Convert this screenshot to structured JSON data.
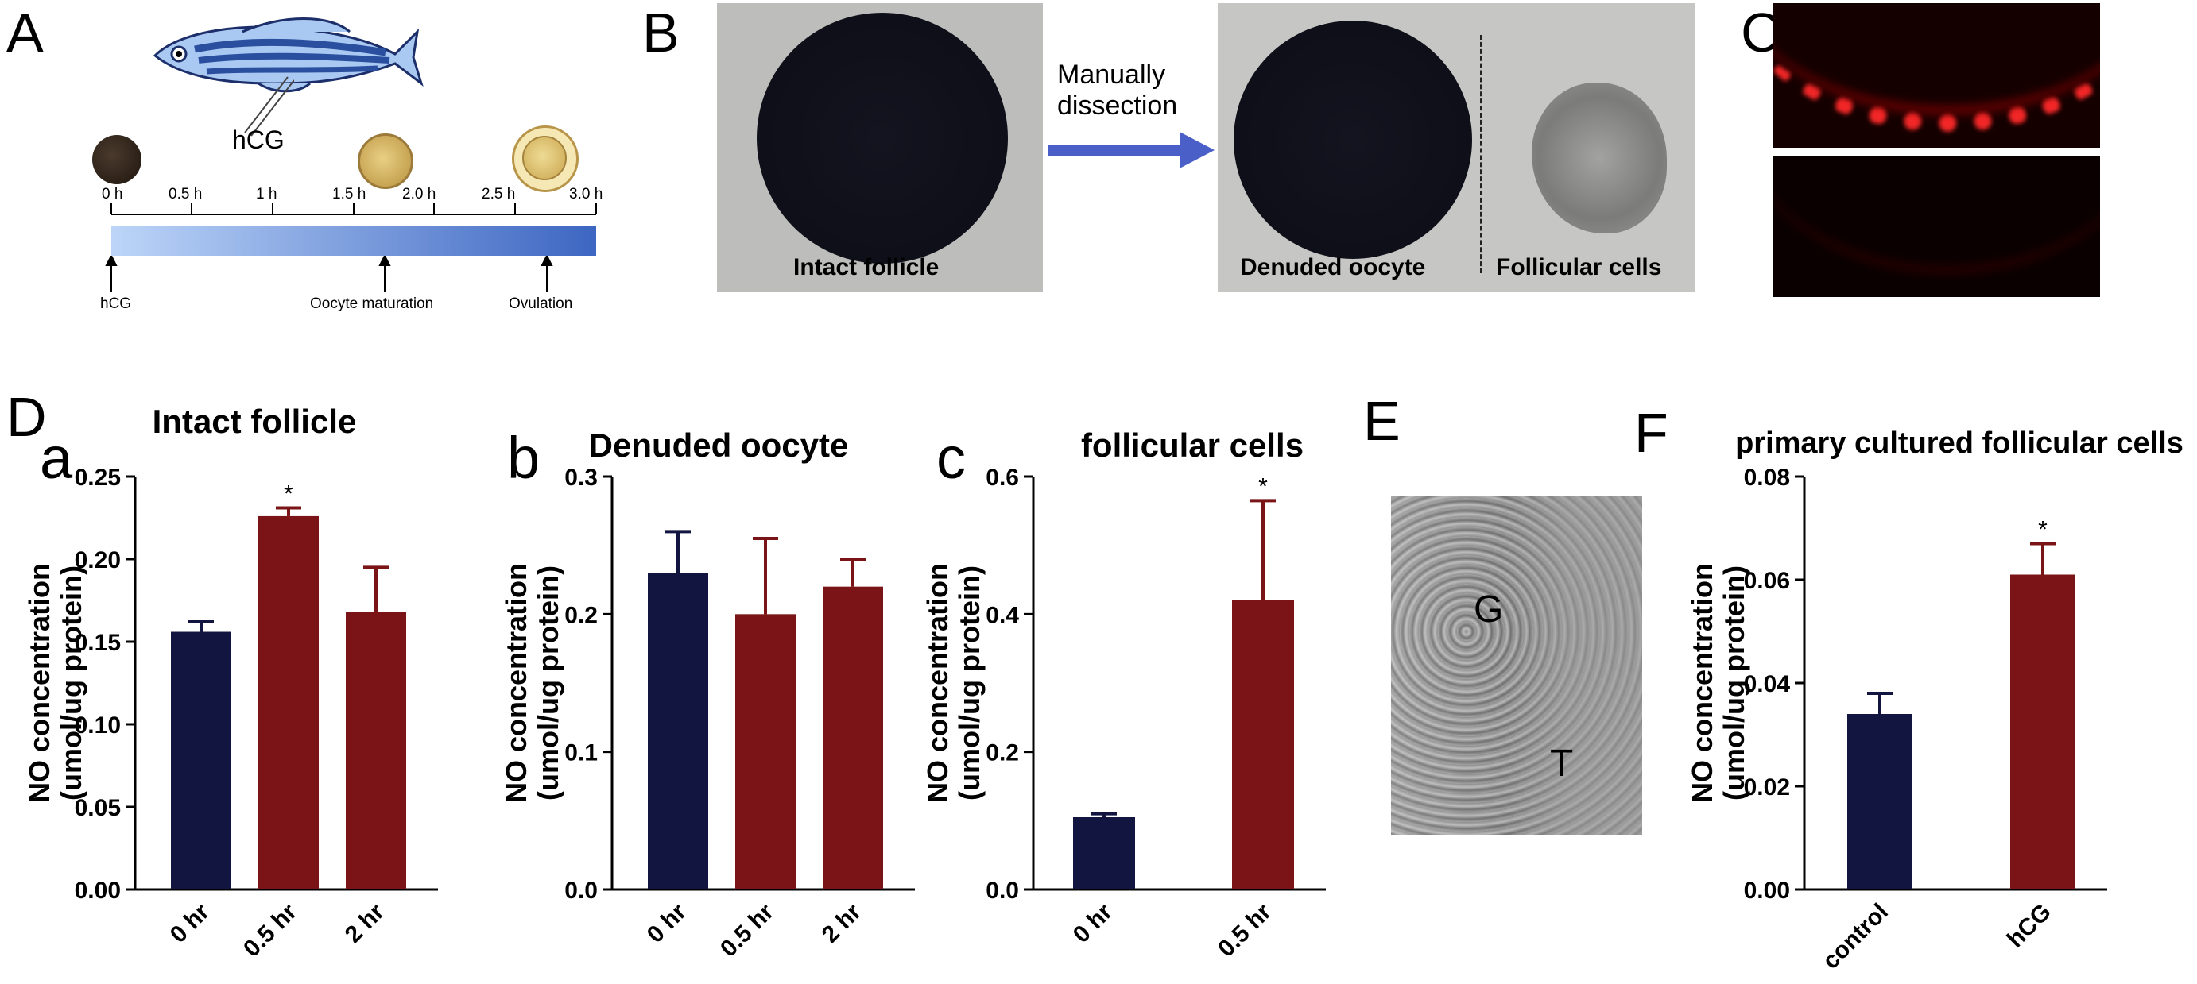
{
  "panels": {
    "A": {
      "letter": "A",
      "hormone_label": "hCG",
      "ticks": [
        "0 h",
        "0.5 h",
        "1 h",
        "1.5 h",
        "2.0 h",
        "2.5 h",
        "3.0 h"
      ],
      "events": [
        "hCG",
        "Oocyte maturation",
        "Ovulation"
      ],
      "colors": {
        "bar_start": "#b9d3f7",
        "bar_end": "#3e68c4",
        "fish_stripe": "#2a4f9e"
      }
    },
    "B": {
      "letter": "B",
      "left_label": "Intact follicle",
      "arrow_label_1": "Manually",
      "arrow_label_2": "dissection",
      "right_label_1": "Denuded oocyte",
      "right_label_2": "Follicular cells",
      "arrow_color": "#4a5fc8"
    },
    "C": {
      "letter": "C"
    },
    "D": {
      "letter": "D"
    },
    "E": {
      "letter": "E",
      "label_g": "G",
      "label_t": "T"
    },
    "F": {
      "letter": "F"
    }
  },
  "sub_letters": {
    "a": "a",
    "b": "b",
    "c": "c"
  },
  "colors": {
    "navy": "#121540",
    "maroon": "#7b1416"
  },
  "chart_data": [
    {
      "id": "a",
      "type": "bar",
      "title": "Intact follicle",
      "ylabel": [
        "NO concentration",
        "(umol/ug protein)"
      ],
      "categories": [
        "0 hr",
        "0.5 hr",
        "2 hr"
      ],
      "values": [
        0.156,
        0.226,
        0.168
      ],
      "errors": [
        0.006,
        0.005,
        0.027
      ],
      "significant": [
        false,
        true,
        false
      ],
      "bar_colors": [
        "#121540",
        "#7b1416",
        "#7b1416"
      ],
      "ylim": [
        0,
        0.25
      ],
      "yticks": [
        0,
        0.05,
        0.1,
        0.15,
        0.2,
        0.25
      ],
      "ytick_labels": [
        "0.00",
        "0.05",
        "0.10",
        "0.15",
        "0.20",
        "0.25"
      ]
    },
    {
      "id": "b",
      "type": "bar",
      "title": "Denuded oocyte",
      "ylabel": [
        "NO concentration",
        "(umol/ug protein)"
      ],
      "categories": [
        "0 hr",
        "0.5 hr",
        "2 hr"
      ],
      "values": [
        0.23,
        0.2,
        0.22
      ],
      "errors": [
        0.03,
        0.055,
        0.02
      ],
      "significant": [
        false,
        false,
        false
      ],
      "bar_colors": [
        "#121540",
        "#7b1416",
        "#7b1416"
      ],
      "ylim": [
        0,
        0.3
      ],
      "yticks": [
        0,
        0.1,
        0.2,
        0.3
      ],
      "ytick_labels": [
        "0.0",
        "0.1",
        "0.2",
        "0.3"
      ]
    },
    {
      "id": "c",
      "type": "bar",
      "title": "follicular cells",
      "ylabel": [
        "NO concentration",
        "(umol/ug protein)"
      ],
      "categories": [
        "0 hr",
        "0.5 hr"
      ],
      "values": [
        0.105,
        0.42
      ],
      "errors": [
        0.005,
        0.145
      ],
      "significant": [
        false,
        true
      ],
      "bar_colors": [
        "#121540",
        "#7b1416"
      ],
      "ylim": [
        0,
        0.6
      ],
      "yticks": [
        0,
        0.2,
        0.4,
        0.6
      ],
      "ytick_labels": [
        "0.0",
        "0.2",
        "0.4",
        "0.6"
      ]
    },
    {
      "id": "f",
      "type": "bar",
      "title": "primary cultured follicular cells",
      "ylabel": [
        "NO concentration",
        "(umol/ug protein)"
      ],
      "categories": [
        "control",
        "hCG"
      ],
      "values": [
        0.034,
        0.061
      ],
      "errors": [
        0.004,
        0.006
      ],
      "significant": [
        false,
        true
      ],
      "bar_colors": [
        "#121540",
        "#7b1416"
      ],
      "ylim": [
        0,
        0.08
      ],
      "yticks": [
        0,
        0.02,
        0.04,
        0.06,
        0.08
      ],
      "ytick_labels": [
        "0.00",
        "0.02",
        "0.04",
        "0.06",
        "0.08"
      ]
    }
  ],
  "significance_marker": "*"
}
